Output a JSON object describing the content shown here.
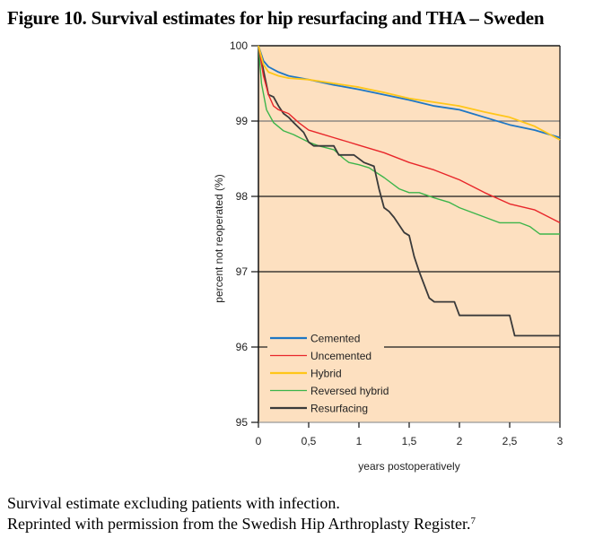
{
  "figure": {
    "title": "Figure 10. Survival estimates for hip resurfacing and THA – Sweden",
    "caption_line1": "Survival estimate excluding patients with infection.",
    "caption_line2": "Reprinted with permission from the Swedish Hip Arthroplasty Register.",
    "caption_superscript": "7"
  },
  "chart_data": {
    "type": "line",
    "title": "Figure 10. Survival estimates for hip resurfacing and THA – Sweden",
    "xlabel": "years postoperatively",
    "ylabel": "percent not reoperated (%)",
    "xlim": [
      0,
      3
    ],
    "ylim": [
      95,
      100
    ],
    "xticks": [
      0,
      0.5,
      1,
      1.5,
      2,
      2.5,
      3
    ],
    "xtick_labels": [
      "0",
      "0,5",
      "1",
      "1,5",
      "2",
      "2,5",
      "3"
    ],
    "yticks": [
      95,
      96,
      97,
      98,
      99,
      100
    ],
    "ytick_labels": [
      "95",
      "96",
      "97",
      "98",
      "99",
      "100"
    ],
    "grid": "horizontal",
    "legend_position": "lower-left",
    "plot_background": "#fde0c0",
    "series": [
      {
        "name": "Cemented",
        "color": "#1f77c4",
        "x": [
          0,
          0.05,
          0.1,
          0.2,
          0.3,
          0.5,
          0.75,
          1.0,
          1.25,
          1.5,
          1.75,
          2.0,
          2.25,
          2.5,
          2.75,
          3.0
        ],
        "y": [
          100,
          99.8,
          99.72,
          99.65,
          99.6,
          99.55,
          99.48,
          99.42,
          99.35,
          99.28,
          99.2,
          99.15,
          99.05,
          98.95,
          98.88,
          98.78
        ]
      },
      {
        "name": "Uncemented",
        "color": "#e8262a",
        "x": [
          0,
          0.05,
          0.1,
          0.15,
          0.2,
          0.3,
          0.4,
          0.5,
          0.6,
          0.75,
          0.9,
          1.0,
          1.25,
          1.5,
          1.75,
          2.0,
          2.25,
          2.5,
          2.75,
          3.0
        ],
        "y": [
          100,
          99.6,
          99.35,
          99.2,
          99.15,
          99.1,
          98.98,
          98.88,
          98.84,
          98.78,
          98.72,
          98.68,
          98.58,
          98.45,
          98.35,
          98.22,
          98.05,
          97.9,
          97.82,
          97.65
        ]
      },
      {
        "name": "Hybrid",
        "color": "#ffc619",
        "x": [
          0,
          0.05,
          0.1,
          0.2,
          0.3,
          0.5,
          0.75,
          1.0,
          1.25,
          1.5,
          1.75,
          2.0,
          2.25,
          2.5,
          2.75,
          3.0
        ],
        "y": [
          100,
          99.75,
          99.65,
          99.6,
          99.57,
          99.55,
          99.5,
          99.45,
          99.38,
          99.3,
          99.25,
          99.2,
          99.12,
          99.05,
          98.93,
          98.75
        ]
      },
      {
        "name": "Reversed hybrid",
        "color": "#3cb54a",
        "x": [
          0,
          0.03,
          0.08,
          0.15,
          0.25,
          0.35,
          0.5,
          0.6,
          0.75,
          0.85,
          0.9,
          1.0,
          1.1,
          1.25,
          1.4,
          1.5,
          1.6,
          1.75,
          1.9,
          2.0,
          2.2,
          2.4,
          2.6,
          2.7,
          2.8,
          3.0
        ],
        "y": [
          100,
          99.5,
          99.15,
          98.98,
          98.87,
          98.82,
          98.72,
          98.67,
          98.62,
          98.5,
          98.45,
          98.42,
          98.38,
          98.25,
          98.1,
          98.05,
          98.05,
          97.98,
          97.92,
          97.85,
          97.75,
          97.65,
          97.65,
          97.6,
          97.5,
          97.5
        ]
      },
      {
        "name": "Resurfacing",
        "color": "#3a3a3a",
        "x": [
          0,
          0.1,
          0.15,
          0.2,
          0.25,
          0.3,
          0.35,
          0.45,
          0.5,
          0.55,
          0.75,
          0.8,
          0.95,
          1.05,
          1.15,
          1.2,
          1.25,
          1.3,
          1.35,
          1.45,
          1.5,
          1.55,
          1.6,
          1.7,
          1.75,
          1.95,
          2.0,
          2.1,
          2.5,
          2.55,
          3.0
        ],
        "y": [
          100,
          99.35,
          99.32,
          99.2,
          99.1,
          99.05,
          98.98,
          98.85,
          98.72,
          98.67,
          98.67,
          98.55,
          98.55,
          98.45,
          98.4,
          98.1,
          97.85,
          97.8,
          97.72,
          97.52,
          97.48,
          97.2,
          97.0,
          96.65,
          96.6,
          96.6,
          96.42,
          96.42,
          96.42,
          96.15,
          96.15
        ]
      }
    ]
  }
}
